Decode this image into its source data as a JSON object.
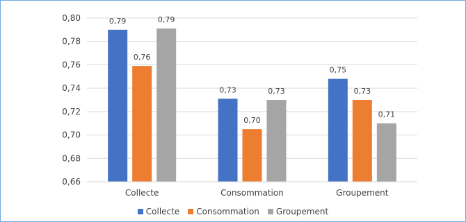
{
  "chart_data": {
    "type": "bar",
    "categories": [
      "Collecte",
      "Consommation",
      "Groupement"
    ],
    "series": [
      {
        "name": "Collecte",
        "values": [
          0.79,
          0.731,
          0.748
        ],
        "labels": [
          "0,79",
          "0,73",
          "0,75"
        ],
        "color": "#4472c4"
      },
      {
        "name": "Consommation",
        "values": [
          0.759,
          0.705,
          0.73
        ],
        "labels": [
          "0,76",
          "0,70",
          "0,73"
        ],
        "color": "#ed7d31"
      },
      {
        "name": "Groupement",
        "values": [
          0.791,
          0.73,
          0.71
        ],
        "labels": [
          "0,79",
          "0,73",
          "0,71"
        ],
        "color": "#a5a5a5"
      }
    ],
    "yticks": [
      "0,66",
      "0,68",
      "0,70",
      "0,72",
      "0,74",
      "0,76",
      "0,78",
      "0,80"
    ],
    "ylim": [
      0.66,
      0.8
    ],
    "grid": true,
    "legend_position": "bottom"
  }
}
